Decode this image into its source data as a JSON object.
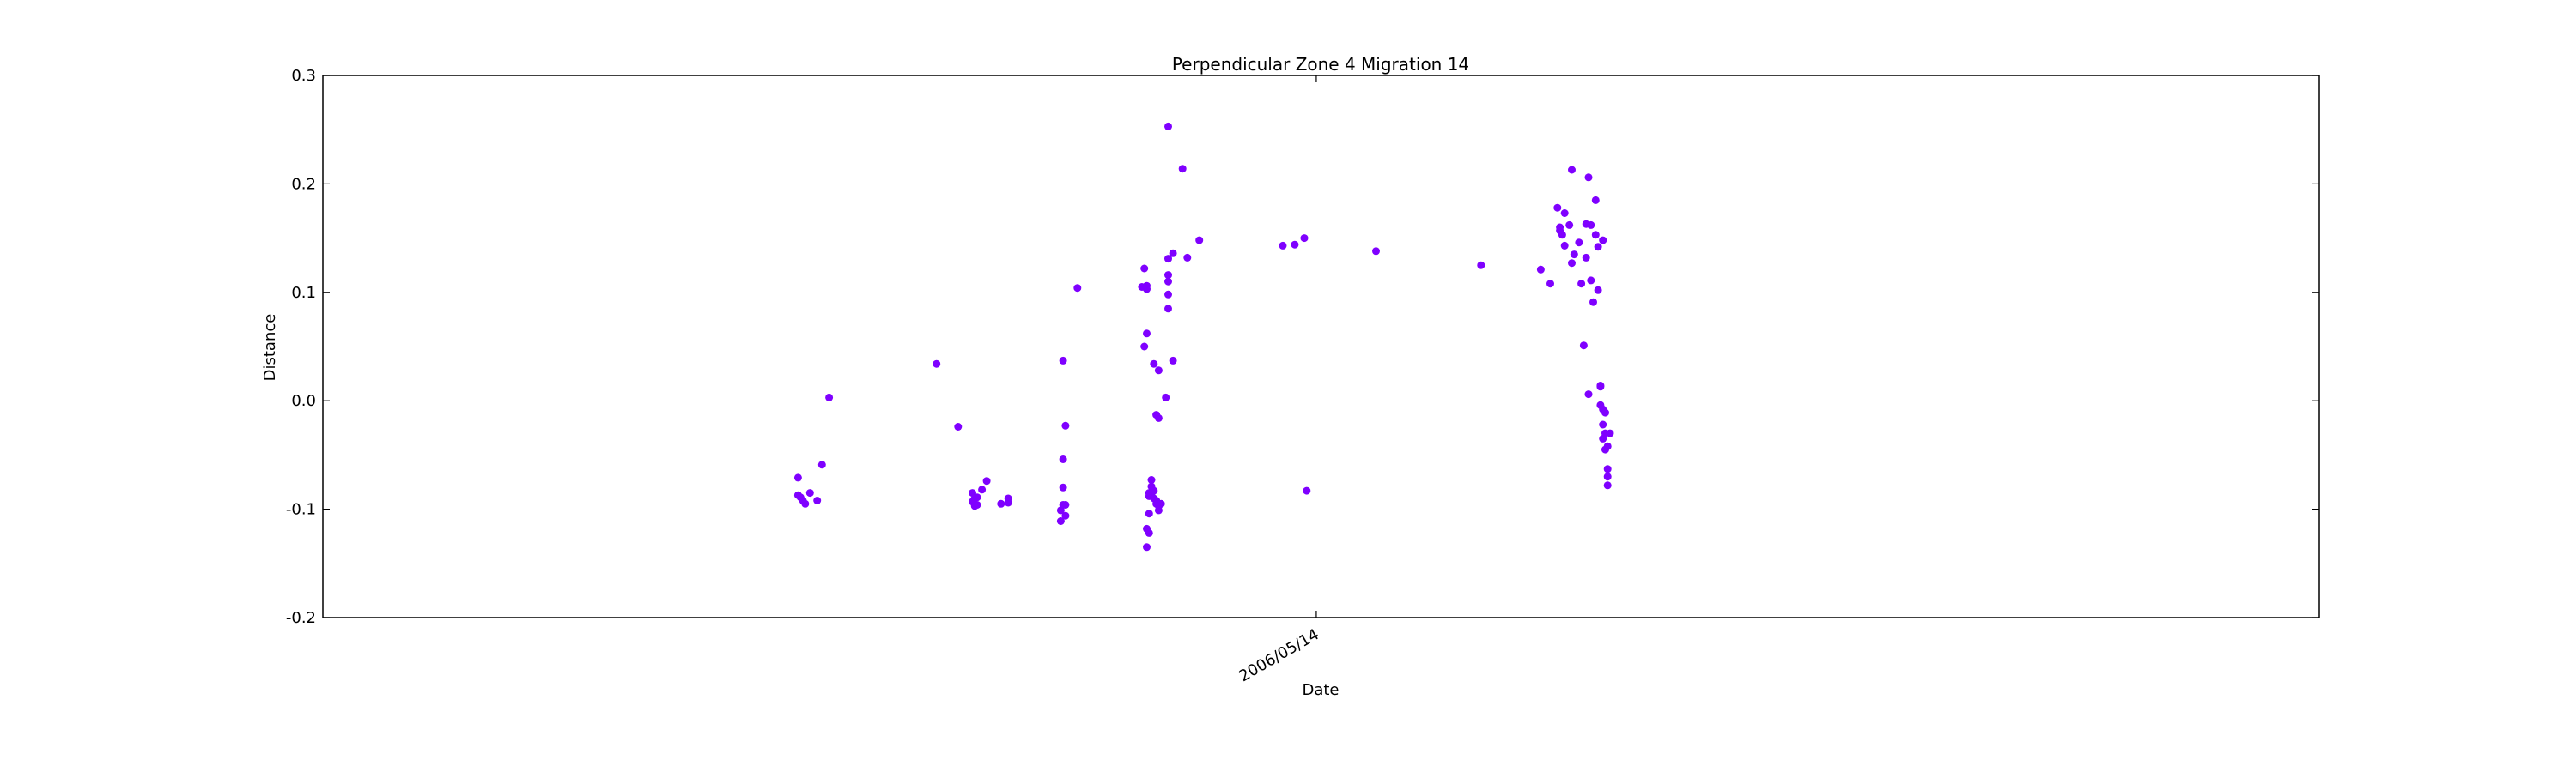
{
  "chart_data": {
    "type": "scatter",
    "title": "Perpendicular Zone 4 Migration 14",
    "xlabel": "Date",
    "ylabel": "Distance",
    "x_axis_type": "date",
    "xlim": [
      "2005-03-24",
      "2007-07-08"
    ],
    "ylim": [
      -0.2,
      0.3
    ],
    "yticks": [
      "-0.2",
      "-0.1",
      "0.0",
      "0.1",
      "0.2",
      "0.3"
    ],
    "xticks": [
      {
        "value": "2006-05-14",
        "label": "2006/05/14"
      }
    ],
    "grid": false,
    "marker_color": "#7f00ff",
    "points": [
      {
        "x": "2005-10-09",
        "y": -0.071
      },
      {
        "x": "2005-10-09",
        "y": -0.087
      },
      {
        "x": "2005-10-10",
        "y": -0.089
      },
      {
        "x": "2005-10-11",
        "y": -0.092
      },
      {
        "x": "2005-10-12",
        "y": -0.095
      },
      {
        "x": "2005-10-14",
        "y": -0.085
      },
      {
        "x": "2005-10-17",
        "y": -0.092
      },
      {
        "x": "2005-10-19",
        "y": -0.059
      },
      {
        "x": "2005-10-22",
        "y": 0.003
      },
      {
        "x": "2005-12-06",
        "y": 0.034
      },
      {
        "x": "2005-12-15",
        "y": -0.024
      },
      {
        "x": "2005-12-21",
        "y": -0.085
      },
      {
        "x": "2005-12-21",
        "y": -0.093
      },
      {
        "x": "2005-12-22",
        "y": -0.097
      },
      {
        "x": "2005-12-22",
        "y": -0.09
      },
      {
        "x": "2005-12-23",
        "y": -0.096
      },
      {
        "x": "2005-12-23",
        "y": -0.089
      },
      {
        "x": "2005-12-25",
        "y": -0.082
      },
      {
        "x": "2005-12-27",
        "y": -0.074
      },
      {
        "x": "2006-01-02",
        "y": -0.095
      },
      {
        "x": "2006-01-05",
        "y": -0.09
      },
      {
        "x": "2006-01-05",
        "y": -0.094
      },
      {
        "x": "2006-01-27",
        "y": -0.111
      },
      {
        "x": "2006-01-27",
        "y": -0.101
      },
      {
        "x": "2006-01-28",
        "y": -0.096
      },
      {
        "x": "2006-01-28",
        "y": -0.08
      },
      {
        "x": "2006-01-28",
        "y": -0.054
      },
      {
        "x": "2006-01-28",
        "y": 0.037
      },
      {
        "x": "2006-01-29",
        "y": -0.023
      },
      {
        "x": "2006-01-29",
        "y": -0.106
      },
      {
        "x": "2006-01-29",
        "y": -0.096
      },
      {
        "x": "2006-02-03",
        "y": 0.104
      },
      {
        "x": "2006-03-02",
        "y": 0.105
      },
      {
        "x": "2006-03-03",
        "y": 0.122
      },
      {
        "x": "2006-03-03",
        "y": 0.05
      },
      {
        "x": "2006-03-04",
        "y": 0.106
      },
      {
        "x": "2006-03-04",
        "y": 0.103
      },
      {
        "x": "2006-03-04",
        "y": 0.062
      },
      {
        "x": "2006-03-04",
        "y": -0.135
      },
      {
        "x": "2006-03-04",
        "y": -0.118
      },
      {
        "x": "2006-03-05",
        "y": -0.122
      },
      {
        "x": "2006-03-05",
        "y": -0.104
      },
      {
        "x": "2006-03-05",
        "y": -0.088
      },
      {
        "x": "2006-03-05",
        "y": -0.085
      },
      {
        "x": "2006-03-06",
        "y": -0.079
      },
      {
        "x": "2006-03-06",
        "y": -0.073
      },
      {
        "x": "2006-03-06",
        "y": -0.086
      },
      {
        "x": "2006-03-07",
        "y": -0.083
      },
      {
        "x": "2006-03-07",
        "y": -0.09
      },
      {
        "x": "2006-03-07",
        "y": 0.034
      },
      {
        "x": "2006-03-08",
        "y": -0.092
      },
      {
        "x": "2006-03-08",
        "y": -0.095
      },
      {
        "x": "2006-03-08",
        "y": -0.013
      },
      {
        "x": "2006-03-09",
        "y": -0.016
      },
      {
        "x": "2006-03-09",
        "y": 0.028
      },
      {
        "x": "2006-03-09",
        "y": -0.097
      },
      {
        "x": "2006-03-09",
        "y": -0.101
      },
      {
        "x": "2006-03-10",
        "y": -0.095
      },
      {
        "x": "2006-03-12",
        "y": 0.003
      },
      {
        "x": "2006-03-13",
        "y": 0.253
      },
      {
        "x": "2006-03-13",
        "y": 0.131
      },
      {
        "x": "2006-03-13",
        "y": 0.116
      },
      {
        "x": "2006-03-13",
        "y": 0.11
      },
      {
        "x": "2006-03-13",
        "y": 0.098
      },
      {
        "x": "2006-03-13",
        "y": 0.085
      },
      {
        "x": "2006-03-15",
        "y": 0.136
      },
      {
        "x": "2006-03-15",
        "y": 0.037
      },
      {
        "x": "2006-03-19",
        "y": 0.214
      },
      {
        "x": "2006-03-21",
        "y": 0.132
      },
      {
        "x": "2006-03-26",
        "y": 0.148
      },
      {
        "x": "2006-04-30",
        "y": 0.143
      },
      {
        "x": "2006-05-05",
        "y": 0.144
      },
      {
        "x": "2006-05-09",
        "y": 0.15
      },
      {
        "x": "2006-05-10",
        "y": -0.083
      },
      {
        "x": "2006-06-08",
        "y": 0.138
      },
      {
        "x": "2006-07-22",
        "y": 0.125
      },
      {
        "x": "2006-08-16",
        "y": 0.121
      },
      {
        "x": "2006-08-20",
        "y": 0.108
      },
      {
        "x": "2006-08-23",
        "y": 0.178
      },
      {
        "x": "2006-08-24",
        "y": 0.16
      },
      {
        "x": "2006-08-24",
        "y": 0.157
      },
      {
        "x": "2006-08-25",
        "y": 0.153
      },
      {
        "x": "2006-08-26",
        "y": 0.173
      },
      {
        "x": "2006-08-26",
        "y": 0.143
      },
      {
        "x": "2006-08-28",
        "y": 0.162
      },
      {
        "x": "2006-08-29",
        "y": 0.213
      },
      {
        "x": "2006-08-29",
        "y": 0.127
      },
      {
        "x": "2006-08-30",
        "y": 0.135
      },
      {
        "x": "2006-09-01",
        "y": 0.146
      },
      {
        "x": "2006-09-02",
        "y": 0.108
      },
      {
        "x": "2006-09-03",
        "y": 0.051
      },
      {
        "x": "2006-09-04",
        "y": 0.163
      },
      {
        "x": "2006-09-04",
        "y": 0.132
      },
      {
        "x": "2006-09-05",
        "y": 0.006
      },
      {
        "x": "2006-09-05",
        "y": 0.206
      },
      {
        "x": "2006-09-06",
        "y": 0.162
      },
      {
        "x": "2006-09-06",
        "y": 0.111
      },
      {
        "x": "2006-09-07",
        "y": 0.091
      },
      {
        "x": "2006-09-08",
        "y": 0.185
      },
      {
        "x": "2006-09-08",
        "y": 0.153
      },
      {
        "x": "2006-09-09",
        "y": 0.142
      },
      {
        "x": "2006-09-09",
        "y": 0.102
      },
      {
        "x": "2006-09-10",
        "y": 0.013
      },
      {
        "x": "2006-09-10",
        "y": 0.014
      },
      {
        "x": "2006-09-10",
        "y": -0.004
      },
      {
        "x": "2006-09-11",
        "y": -0.008
      },
      {
        "x": "2006-09-11",
        "y": -0.022
      },
      {
        "x": "2006-09-11",
        "y": -0.035
      },
      {
        "x": "2006-09-11",
        "y": 0.148
      },
      {
        "x": "2006-09-12",
        "y": -0.011
      },
      {
        "x": "2006-09-12",
        "y": -0.03
      },
      {
        "x": "2006-09-12",
        "y": -0.045
      },
      {
        "x": "2006-09-13",
        "y": -0.042
      },
      {
        "x": "2006-09-13",
        "y": -0.063
      },
      {
        "x": "2006-09-13",
        "y": -0.07
      },
      {
        "x": "2006-09-13",
        "y": -0.078
      },
      {
        "x": "2006-09-14",
        "y": -0.03
      }
    ]
  }
}
